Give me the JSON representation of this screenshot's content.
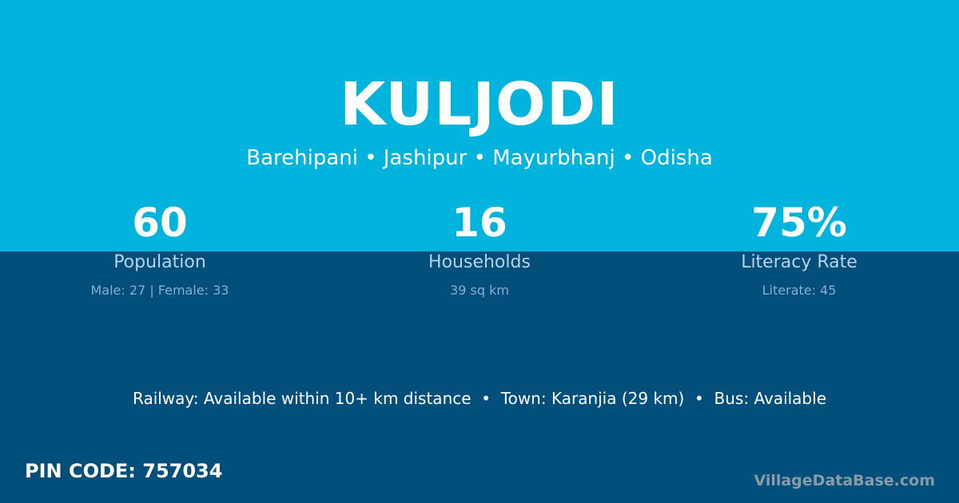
{
  "village": "KULJODI",
  "breadcrumb": "Barehipani • Jashipur • Mayurbhanj • Odisha",
  "stats": [
    {
      "value": "60",
      "label": "Population",
      "detail": "Male: 27 | Female: 33"
    },
    {
      "value": "16",
      "label": "Households",
      "detail": "39 sq km"
    },
    {
      "value": "75%",
      "label": "Literacy Rate",
      "detail": "Literate: 45"
    }
  ],
  "info": "Railway: Available within 10+ km distance  •  Town: Karanjia (29 km)  •  Bus: Available",
  "pin": "PIN CODE: 757034",
  "brand": "VillageDataBase.com",
  "colors": {
    "top": "#00b3dc",
    "bottom": "#034f7c"
  }
}
